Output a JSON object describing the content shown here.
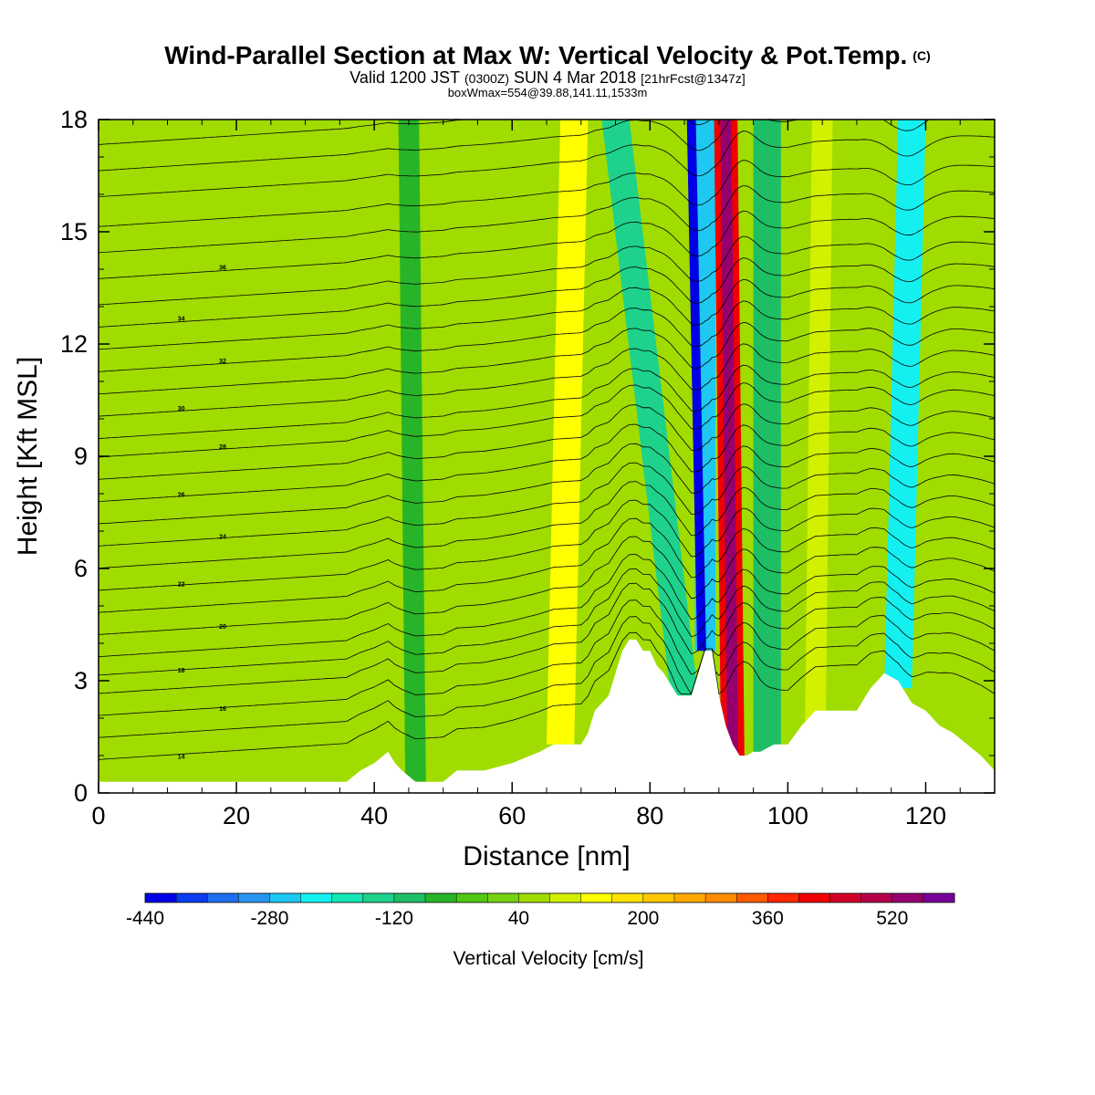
{
  "chart_data": {
    "type": "heatmap",
    "title": "Wind-Parallel Section at Max W: Vertical Velocity & Pot.Temp.",
    "title_units": "(C)",
    "subtitle": {
      "valid_label": "Valid 1200 JST",
      "utc": "(0300Z)",
      "date": "SUN 4 Mar 2018",
      "forecast": "[21hrFcst@1347z]"
    },
    "box_info": "boxWmax=554@39.88,141.11,1533m",
    "xlabel": "Distance [nm]",
    "ylabel": "Height [Kft MSL]",
    "xlim": [
      0,
      130
    ],
    "ylim": [
      0,
      18
    ],
    "xticks": [
      0,
      20,
      40,
      60,
      80,
      100,
      120
    ],
    "yticks": [
      0,
      3,
      6,
      9,
      12,
      15,
      18
    ],
    "colorbar": {
      "label": "Vertical Velocity [cm/s]",
      "tick_labels": [
        "-440",
        "-280",
        "-120",
        "40",
        "200",
        "360",
        "520"
      ],
      "tick_values": [
        -440,
        -280,
        -120,
        40,
        200,
        360,
        520
      ],
      "min": -440,
      "max": 600,
      "step": 40,
      "colors": [
        "#0000e6",
        "#0a3cf0",
        "#1e6ef0",
        "#2896f0",
        "#1ec8f0",
        "#14f0f0",
        "#14e6b4",
        "#1ed28c",
        "#1ebe64",
        "#28b428",
        "#50c814",
        "#78d214",
        "#a0dc00",
        "#d2f000",
        "#ffff00",
        "#ffe100",
        "#ffc800",
        "#ffaa00",
        "#ff8c00",
        "#ff5a00",
        "#ff2800",
        "#f00000",
        "#d20028",
        "#b4004b",
        "#96006e",
        "#780096"
      ]
    },
    "terrain_profile": {
      "x": [
        0,
        2,
        8,
        22,
        36,
        38,
        40,
        42,
        43,
        44,
        46,
        50,
        52,
        56,
        60,
        64,
        66,
        68,
        70,
        71,
        72,
        74,
        75,
        76,
        77,
        78,
        79,
        80,
        81,
        82,
        84,
        86,
        87,
        88,
        89,
        90,
        91,
        92,
        93,
        94,
        95,
        96,
        98,
        100,
        102,
        104,
        110,
        112,
        114,
        116,
        118,
        120,
        122,
        124,
        126,
        128,
        130
      ],
      "height_kft": [
        0.3,
        0.3,
        0.3,
        0.3,
        0.3,
        0.6,
        0.8,
        1.1,
        0.8,
        0.6,
        0.3,
        0.3,
        0.6,
        0.6,
        0.8,
        1.1,
        1.3,
        1.3,
        1.3,
        1.6,
        2.2,
        2.6,
        3.2,
        3.8,
        4.1,
        4.1,
        3.8,
        3.8,
        3.4,
        3.2,
        2.6,
        2.6,
        3.2,
        3.8,
        3.8,
        2.6,
        1.8,
        1.3,
        1.0,
        1.0,
        1.1,
        1.1,
        1.3,
        1.3,
        1.8,
        2.2,
        2.2,
        2.8,
        3.2,
        3.0,
        2.4,
        2.2,
        1.8,
        1.6,
        1.3,
        1.0,
        0.6
      ]
    },
    "w_features": [
      {
        "x_bottom": 67,
        "x_top": 69,
        "width_nm": 4,
        "h_bottom": 1.3,
        "w_cm_s": 150
      },
      {
        "x_bottom": 85,
        "x_top": 75,
        "width_nm": 4,
        "h_bottom": 2.6,
        "w_cm_s": -130
      },
      {
        "x_bottom": 88,
        "x_top": 88,
        "width_nm": 3,
        "h_bottom": 3.8,
        "w_cm_s": -250
      },
      {
        "x_bottom": 87.5,
        "x_top": 86,
        "width_nm": 1.3,
        "h_bottom": 3.8,
        "w_cm_s": -440
      },
      {
        "x_bottom": 92,
        "x_top": 91,
        "width_nm": 3.4,
        "h_bottom": 1.0,
        "w_cm_s": 400
      },
      {
        "x_bottom": 92,
        "x_top": 91,
        "width_nm": 1.6,
        "h_bottom": 1.0,
        "w_cm_s": 554
      },
      {
        "x_bottom": 97,
        "x_top": 97,
        "width_nm": 4,
        "h_bottom": 1.1,
        "w_cm_s": -100
      },
      {
        "x_bottom": 104,
        "x_top": 105,
        "width_nm": 3,
        "h_bottom": 1.8,
        "w_cm_s": 80
      },
      {
        "x_bottom": 116,
        "x_top": 118,
        "width_nm": 4,
        "h_bottom": 2.8,
        "w_cm_s": -220
      },
      {
        "x_bottom": 46,
        "x_top": 45,
        "width_nm": 3,
        "h_bottom": 0.3,
        "w_cm_s": -60
      }
    ],
    "contour_labels": [
      "14",
      "16",
      "18",
      "20",
      "22",
      "24",
      "26",
      "28",
      "30",
      "32",
      "34",
      "36"
    ],
    "potential_temperature_contours_kft_at_x0": [
      0.7,
      1.3,
      1.9,
      2.5,
      3.0,
      3.5,
      4.1,
      4.7,
      5.3,
      5.9,
      6.5,
      7.1,
      7.7,
      8.3,
      8.9,
      9.4,
      10.0,
      10.6,
      11.2,
      11.8,
      12.4,
      13.0,
      13.7,
      14.4,
      15.1,
      15.9,
      16.6,
      17.3
    ]
  }
}
